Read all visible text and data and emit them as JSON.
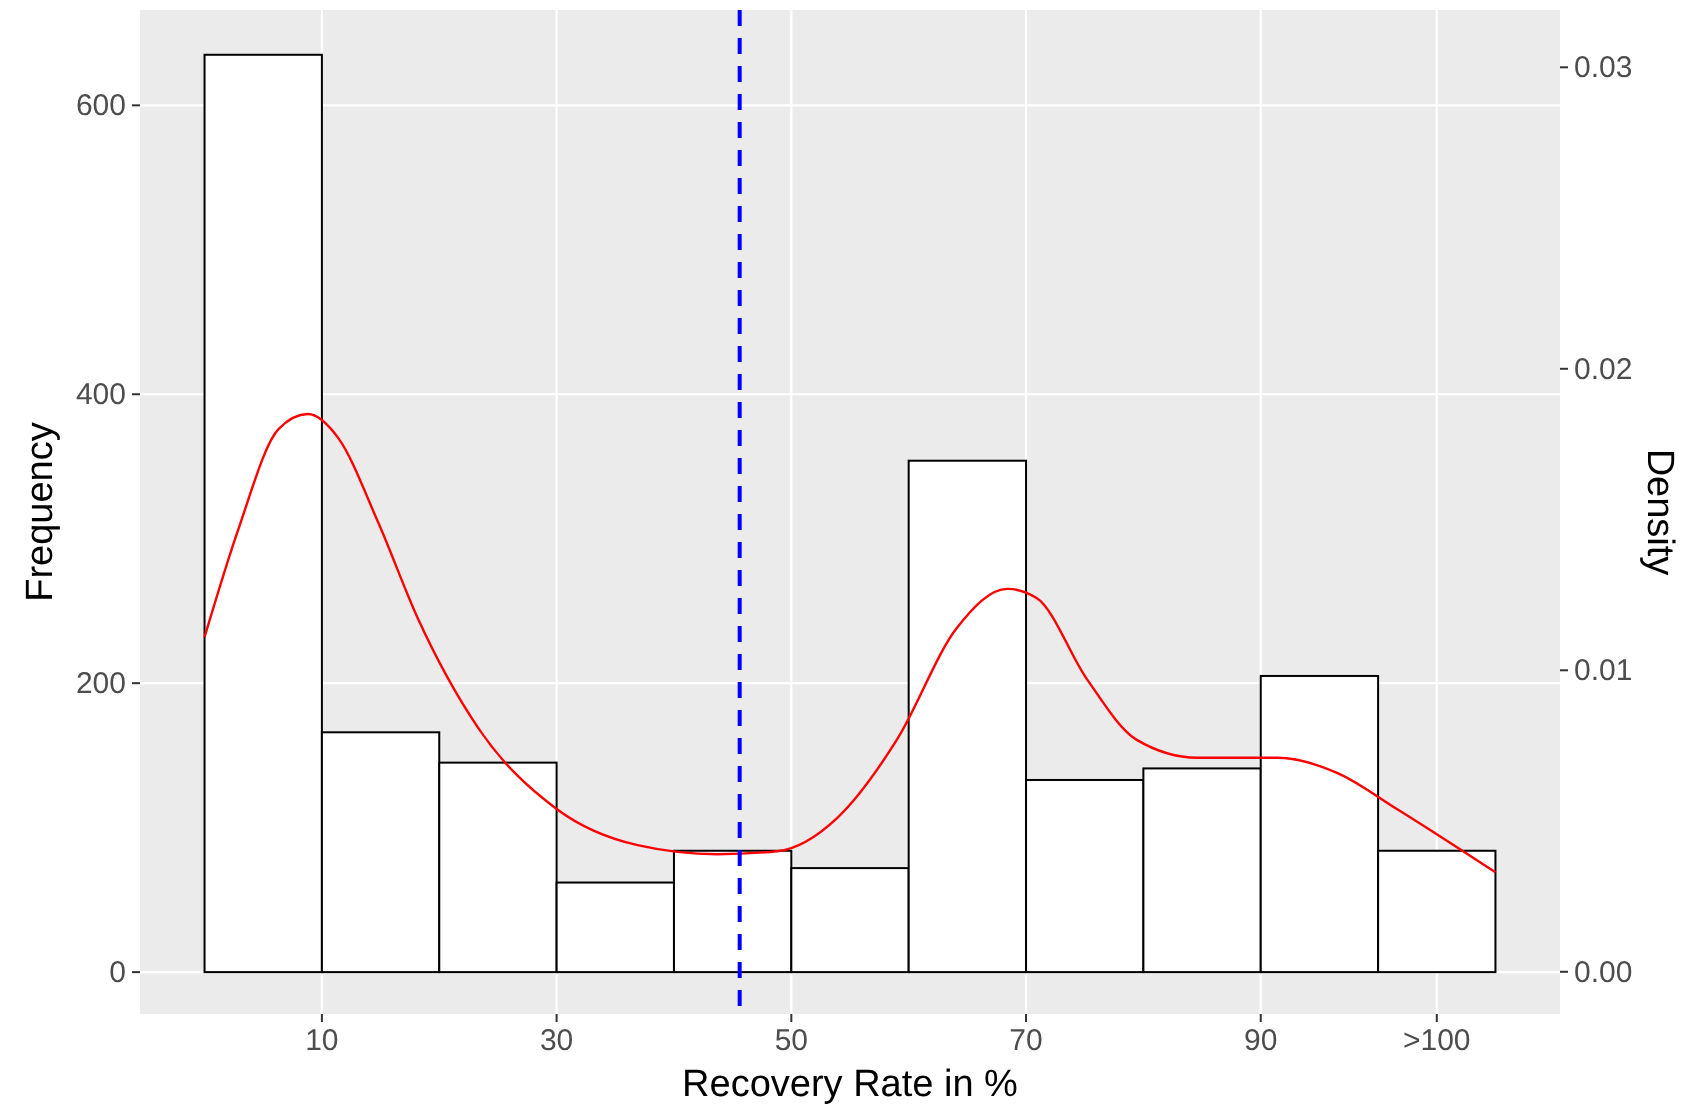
{
  "chart_data": {
    "type": "histogram",
    "xlabel": "Recovery Rate in %",
    "ylabel": "Frequency",
    "y2label": "Density",
    "bins": [
      0,
      10,
      20,
      30,
      40,
      50,
      60,
      70,
      80,
      90,
      100,
      110
    ],
    "values": [
      635,
      166,
      145,
      62,
      84,
      72,
      354,
      133,
      141,
      205,
      84
    ],
    "color": "#ffffff",
    "series": [
      {
        "type": "line",
        "axis": "y2",
        "color": "#ff0000",
        "x": [
          0,
          2.9,
          6.3,
          8.8,
          11.4,
          14.8,
          18.2,
          23.3,
          30,
          36.9,
          43.7,
          48.8,
          53.9,
          59,
          64.1,
          68.4,
          70.9,
          75.2,
          79.4,
          84.6,
          91.4,
          96.5,
          101.6,
          110
        ],
        "values": [
          0.0111,
          0.0147,
          0.018,
          0.0185,
          0.0177,
          0.0149,
          0.0117,
          0.0081,
          0.0054,
          0.0042,
          0.0039,
          0.004,
          0.0051,
          0.0077,
          0.0114,
          0.0127,
          0.0124,
          0.0097,
          0.0077,
          0.0071,
          0.0071,
          0.0066,
          0.0054,
          0.0033
        ]
      }
    ],
    "ref_lines": [
      {
        "axis": "x",
        "value": 45.6,
        "color": "#0000ff",
        "line_style": "dashed"
      }
    ],
    "xlim": [
      -5.5,
      115.5
    ],
    "xticks": [
      10,
      30,
      50,
      70,
      90,
      {
        "value": 105,
        "label": ">100"
      }
    ],
    "ylim": [
      -29,
      666
    ],
    "yticks": [
      0,
      200,
      400,
      600
    ],
    "y2lim": [
      -0.0014,
      0.0319
    ],
    "y2ticks": [
      {
        "value": 0,
        "label": "0.00"
      },
      {
        "value": 0.01,
        "label": "0.01"
      },
      {
        "value": 0.02,
        "label": "0.02"
      },
      {
        "value": 0.03,
        "label": "0.03"
      }
    ],
    "grid": true
  }
}
